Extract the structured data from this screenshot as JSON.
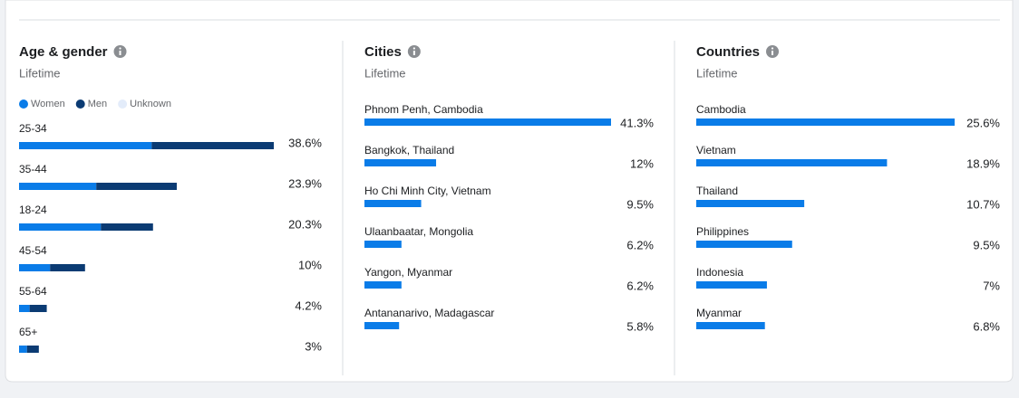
{
  "sections": [
    {
      "title": "Age & gender",
      "subtitle": "Lifetime",
      "chart_data": {
        "type": "stacked-bar",
        "categories": [
          "25-34",
          "35-44",
          "18-24",
          "45-54",
          "55-64",
          "65+"
        ],
        "values": [
          38.6,
          23.9,
          20.3,
          10,
          4.2,
          3
        ],
        "value_labels": [
          "38.6%",
          "23.9%",
          "20.3%",
          "10%",
          "4.2%",
          "3%"
        ],
        "series": [
          {
            "name": "Women",
            "color": "#0a7ce8",
            "values": [
              20.1,
              11.7,
              12.4,
              4.7,
              1.6,
              1.2
            ]
          },
          {
            "name": "Men",
            "color": "#0b3b73",
            "values": [
              18.5,
              12.2,
              7.9,
              5.3,
              2.6,
              1.8
            ]
          },
          {
            "name": "Unknown",
            "color": "#e3ecfa",
            "values": [
              0,
              0,
              0,
              0,
              0,
              0
            ]
          }
        ],
        "xlim": [
          0,
          38.6
        ]
      }
    },
    {
      "title": "Cities",
      "subtitle": "Lifetime",
      "chart_data": {
        "type": "bar",
        "categories": [
          "Phnom Penh, Cambodia",
          "Bangkok, Thailand",
          "Ho Chi Minh City, Vietnam",
          "Ulaanbaatar, Mongolia",
          "Yangon, Myanmar",
          "Antananarivo, Madagascar"
        ],
        "values": [
          41.3,
          12,
          9.5,
          6.2,
          6.2,
          5.8
        ],
        "value_labels": [
          "41.3%",
          "12%",
          "9.5%",
          "6.2%",
          "6.2%",
          "5.8%"
        ],
        "color": "#0a7ce8",
        "xlim": [
          0,
          41.3
        ]
      }
    },
    {
      "title": "Countries",
      "subtitle": "Lifetime",
      "chart_data": {
        "type": "bar",
        "categories": [
          "Cambodia",
          "Vietnam",
          "Thailand",
          "Philippines",
          "Indonesia",
          "Myanmar"
        ],
        "values": [
          25.6,
          18.9,
          10.7,
          9.5,
          7,
          6.8
        ],
        "value_labels": [
          "25.6%",
          "18.9%",
          "10.7%",
          "9.5%",
          "7%",
          "6.8%"
        ],
        "color": "#0a7ce8",
        "xlim": [
          0,
          25.6
        ]
      }
    }
  ]
}
